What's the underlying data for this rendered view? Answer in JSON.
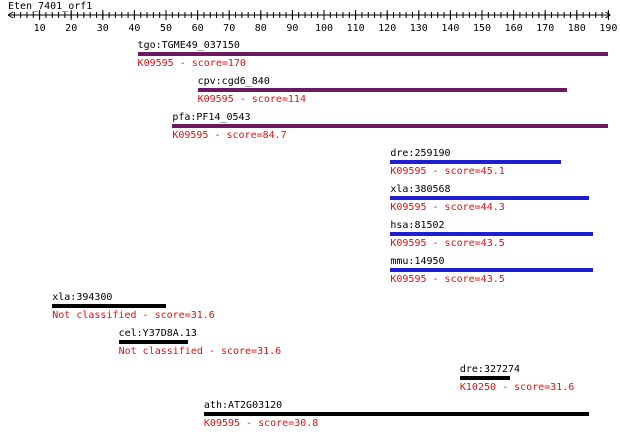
{
  "query": {
    "name": "Eten_7401_orf1",
    "length": 190
  },
  "ruler": {
    "ticks": [
      "10",
      "20",
      "30",
      "40",
      "50",
      "60",
      "70",
      "80",
      "90",
      "100",
      "110",
      "120",
      "130",
      "140",
      "150",
      "160",
      "170",
      "180",
      "190"
    ]
  },
  "colors": {
    "purple": "#6b1a62",
    "blue": "#1e1ed2",
    "black": "#000000",
    "red": "#e01010"
  },
  "hits": [
    {
      "label": "tgo:TGME49_037150",
      "score": "K09595 - score=170",
      "start": 41,
      "end": 190,
      "color": "purple"
    },
    {
      "label": "cpv:cgd6_840",
      "score": "K09595 - score=114",
      "start": 60,
      "end": 177,
      "color": "purple"
    },
    {
      "label": "pfa:PF14_0543",
      "score": "K09595 - score=84.7",
      "start": 52,
      "end": 190,
      "color": "purple"
    },
    {
      "label": "dre:259190",
      "score": "K09595 - score=45.1",
      "start": 121,
      "end": 175,
      "color": "blue"
    },
    {
      "label": "xla:380568",
      "score": "K09595 - score=44.3",
      "start": 121,
      "end": 184,
      "color": "blue"
    },
    {
      "label": "hsa:81502",
      "score": "K09595 - score=43.5",
      "start": 121,
      "end": 185,
      "color": "blue"
    },
    {
      "label": "mmu:14950",
      "score": "K09595 - score=43.5",
      "start": 121,
      "end": 185,
      "color": "blue"
    },
    {
      "label": "xla:394300",
      "score": "Not classified - score=31.6",
      "start": 14,
      "end": 50,
      "color": "black"
    },
    {
      "label": "cel:Y37D8A.13",
      "score": "Not classified - score=31.6",
      "start": 35,
      "end": 57,
      "color": "black"
    },
    {
      "label": "dre:327274",
      "score": "K10250 - score=31.6",
      "start": 143,
      "end": 159,
      "color": "black"
    },
    {
      "label": "ath:AT2G03120",
      "score": "K09595 - score=30.8",
      "start": 62,
      "end": 184,
      "color": "black"
    }
  ]
}
